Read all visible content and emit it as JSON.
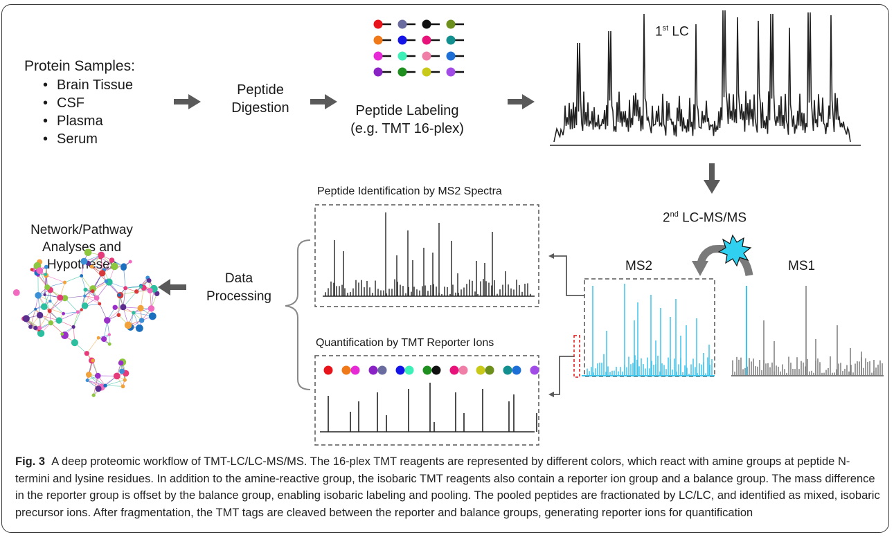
{
  "protein_samples": {
    "title": "Protein Samples:",
    "items": [
      "Brain Tissue",
      "CSF",
      "Plasma",
      "Serum"
    ]
  },
  "steps": {
    "digestion": "Peptide Digestion",
    "labeling_line1": "Peptide Labeling",
    "labeling_line2": "(e.g. TMT 16-plex)",
    "first_lc_base": "1",
    "first_lc_sup": "st",
    "first_lc_rest": " LC",
    "second_lc_base": "2",
    "second_lc_sup": "nd",
    "second_lc_rest": " LC-MS/MS",
    "ms2": "MS2",
    "ms1": "MS1",
    "peptide_identification": "Peptide Identification by MS2 Spectra",
    "quantification": "Quantification by TMT Reporter Ions",
    "data_processing_line1": "Data",
    "data_processing_line2": "Processing",
    "network_line1": "Network/Pathway",
    "network_line2": "Analyses and",
    "network_line3": "Hypotheses"
  },
  "tmt_colors": {
    "labeling_grid": [
      "#e8141b",
      "#6a6b9e",
      "#111111",
      "#6d8f1c",
      "#f07a1a",
      "#1414e6",
      "#e8137a",
      "#138f8f",
      "#e62ad6",
      "#3df0b8",
      "#f07fa8",
      "#1d6fd6",
      "#8a23c4",
      "#1f8f1f",
      "#c9c91a",
      "#a24ce8"
    ],
    "reporter_row": [
      "#e8141b",
      "#f07a1a",
      "#e62ad6",
      "#8a23c4",
      "#6a6b9e",
      "#1414e6",
      "#3df0b8",
      "#1f8f1f",
      "#111111",
      "#e8137a",
      "#f07fa8",
      "#c9c91a",
      "#6d8f1c",
      "#138f8f",
      "#1d6fd6",
      "#a24ce8"
    ]
  },
  "caption": {
    "label": "Fig. 3",
    "text": "A deep proteomic workflow of TMT-LC/LC-MS/MS. The 16-plex TMT reagents are represented by different colors, which react with amine groups at peptide N-termini and lysine residues. In addition to the amine-reactive group, the isobaric TMT reagents also contain a reporter ion group and a balance group. The mass difference in the reporter group is offset by the balance group, enabling isobaric labeling and pooling. The pooled peptides are fractionated by LC/LC, and identified as mixed, isobaric precursor ions. After fragmentation, the TMT tags are cleaved between the reporter and balance groups, generating reporter ions for quantification"
  },
  "accent_colors": {
    "ms2": "#3cc4ea",
    "ms1": "#7a7a7a",
    "burst": "#2fd0f0",
    "reporter_box": "#e01010",
    "arrow": "#5a5a5a"
  }
}
